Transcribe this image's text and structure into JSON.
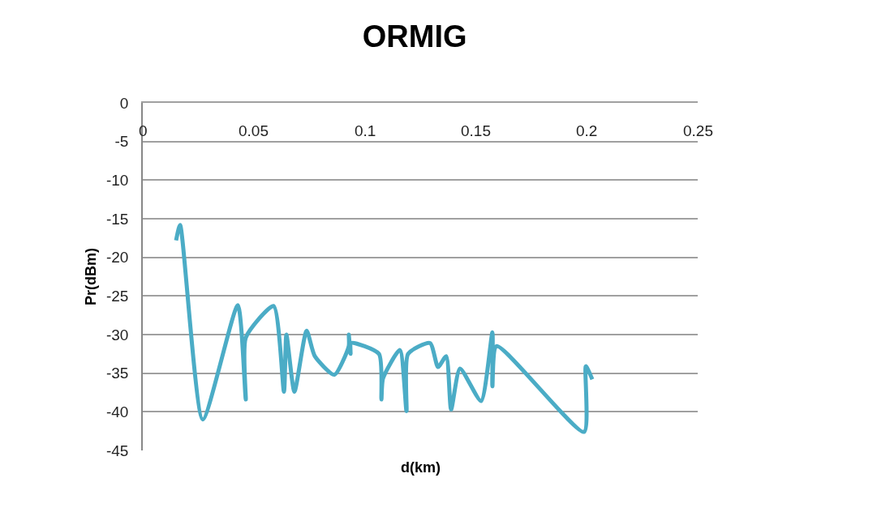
{
  "chart_data": {
    "type": "line",
    "title": "ORMIG",
    "xlabel": "d(km)",
    "ylabel": "Pr(dBm)",
    "x": [
      0.015,
      0.0168,
      0.027,
      0.0428,
      0.0464,
      0.0464,
      0.0589,
      0.0636,
      0.0647,
      0.0683,
      0.0738,
      0.0775,
      0.0863,
      0.0928,
      0.0928,
      0.0936,
      0.0939,
      0.1064,
      0.1075,
      0.1082,
      0.1158,
      0.1188,
      0.1195,
      0.1294,
      0.133,
      0.1367,
      0.1389,
      0.1429,
      0.1524,
      0.1575,
      0.1575,
      0.1594,
      0.1988,
      0.1996,
      0.2025
    ],
    "series": [
      {
        "color": "#4bacc6",
        "values": [
          -17.8,
          -15.8,
          -41.0,
          -26.2,
          -38.4,
          -30.4,
          -26.3,
          -37.4,
          -30.0,
          -37.4,
          -29.5,
          -32.8,
          -35.2,
          -31.5,
          -30.0,
          -32.5,
          -31.1,
          -32.5,
          -38.4,
          -35.7,
          -32.0,
          -39.9,
          -32.5,
          -31.1,
          -34.2,
          -32.8,
          -39.7,
          -34.4,
          -38.6,
          -29.7,
          -36.7,
          -31.5,
          -42.6,
          -34.1,
          -35.8
        ]
      }
    ],
    "xlim": [
      0,
      0.25
    ],
    "xticks": [
      0,
      0.05,
      0.1,
      0.15,
      0.2,
      0.25
    ],
    "ylim": [
      -45,
      0
    ],
    "yticks": [
      -45,
      -40,
      -35,
      -30,
      -25,
      -20,
      -15,
      -10,
      -5,
      0
    ],
    "grid": "y",
    "marker": "none",
    "line_style": "solid"
  }
}
